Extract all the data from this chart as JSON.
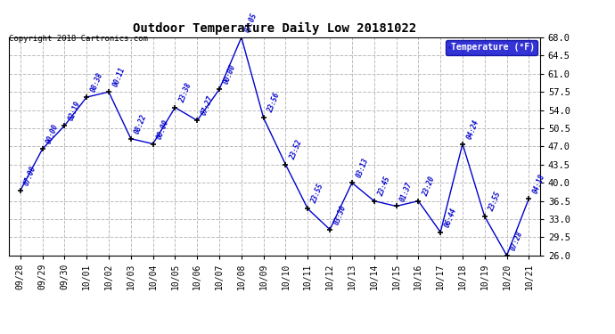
{
  "title": "Outdoor Temperature Daily Low 20181022",
  "copyright": "Copyright 2018 Cartronics.com",
  "legend_label": "Temperature (°F)",
  "x_labels": [
    "09/28",
    "09/29",
    "09/30",
    "10/01",
    "10/02",
    "10/03",
    "10/04",
    "10/05",
    "10/06",
    "10/07",
    "10/08",
    "10/09",
    "10/10",
    "10/11",
    "10/12",
    "10/13",
    "10/14",
    "10/15",
    "10/16",
    "10/17",
    "10/18",
    "10/19",
    "10/20",
    "10/21"
  ],
  "temperatures": [
    38.5,
    46.5,
    51.0,
    56.5,
    57.5,
    48.5,
    47.5,
    54.5,
    52.0,
    58.0,
    68.0,
    52.5,
    43.5,
    35.0,
    31.0,
    40.0,
    36.5,
    35.5,
    36.5,
    30.5,
    47.5,
    33.5,
    26.0,
    37.0
  ],
  "time_labels": [
    "07:00",
    "00:00",
    "02:19",
    "08:38",
    "00:11",
    "08:22",
    "00:00",
    "23:38",
    "07:27",
    "00:00",
    "07:05",
    "23:56",
    "23:52",
    "23:55",
    "03:30",
    "03:13",
    "23:45",
    "01:37",
    "23:20",
    "06:44",
    "04:24",
    "23:55",
    "07:28",
    "04:18"
  ],
  "ylim_min": 26.0,
  "ylim_max": 68.0,
  "yticks": [
    26.0,
    29.5,
    33.0,
    36.5,
    40.0,
    43.5,
    47.0,
    50.5,
    54.0,
    57.5,
    61.0,
    64.5,
    68.0
  ],
  "line_color": "#0000cc",
  "marker_color": "#000000",
  "bg_color": "#ffffff",
  "grid_color": "#bbbbbb",
  "title_color": "#000000",
  "label_color": "#0000cc",
  "legend_bg": "#0000cc",
  "legend_fg": "#ffffff"
}
